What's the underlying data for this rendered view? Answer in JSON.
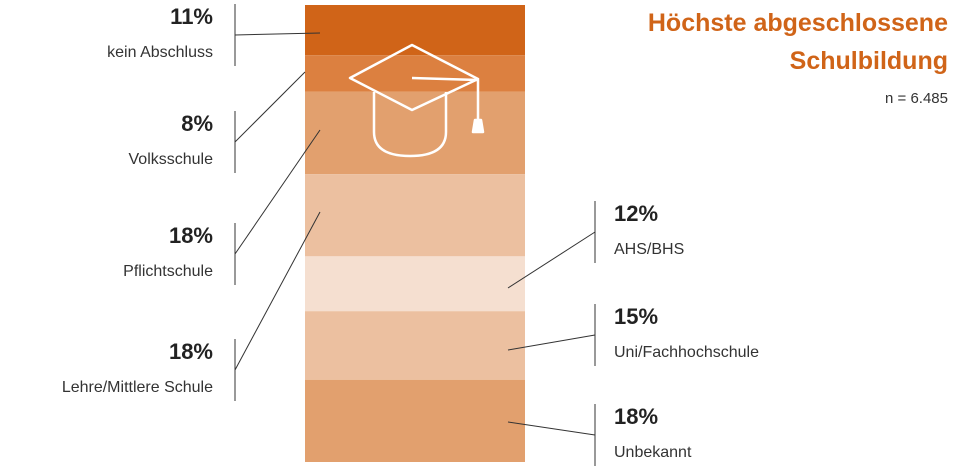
{
  "chart_data": {
    "type": "stacked-bar",
    "title": "Höchste abgeschlossene Schulbildung",
    "subtitle": "n = 6.485",
    "categories": [
      "kein Abschluss",
      "Volksschule",
      "Pflichtschule",
      "Lehre/Mittlere Schule",
      "AHS/BHS",
      "Uni/Fachhochschule",
      "Unbekannt"
    ],
    "values": [
      11,
      8,
      18,
      18,
      12,
      15,
      18
    ],
    "value_labels": [
      "11%",
      "8%",
      "18%",
      "18%",
      "12%",
      "15%",
      "18%"
    ],
    "colors": [
      "#d06418",
      "#dc8040",
      "#e2a06e",
      "#ecc0a0",
      "#f5dfd0",
      "#ecc0a0",
      "#e2a06e"
    ],
    "ylim": [
      0,
      100
    ]
  }
}
